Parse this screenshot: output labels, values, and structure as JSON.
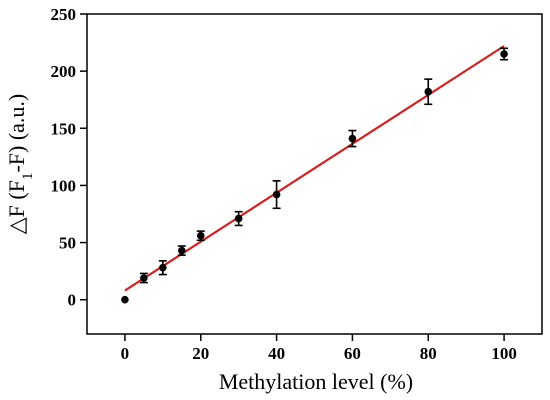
{
  "chart_data": {
    "type": "scatter",
    "xlabel": "Methylation level (%)",
    "ylabel_parts": {
      "symbol": "△",
      "main": "F (F",
      "subscript": "1",
      "tail": "-F) (a.u.)"
    },
    "xlim": [
      -10,
      110
    ],
    "ylim": [
      -30,
      250
    ],
    "xticks": [
      0,
      20,
      40,
      60,
      80,
      100
    ],
    "yticks": [
      0,
      50,
      100,
      150,
      200,
      250
    ],
    "grid": false,
    "series": [
      {
        "x": [
          0,
          5,
          10,
          15,
          20,
          30,
          40,
          60,
          80,
          100
        ],
        "y": [
          0,
          19,
          28,
          43,
          56,
          71,
          92,
          141,
          182,
          215
        ],
        "err": [
          0,
          4,
          6,
          4,
          4,
          6,
          12,
          7,
          11,
          5
        ]
      }
    ],
    "fit_line": {
      "x": [
        0,
        100
      ],
      "y": [
        8,
        222
      ],
      "color": "#d62020"
    },
    "marker_color": "#000000"
  }
}
